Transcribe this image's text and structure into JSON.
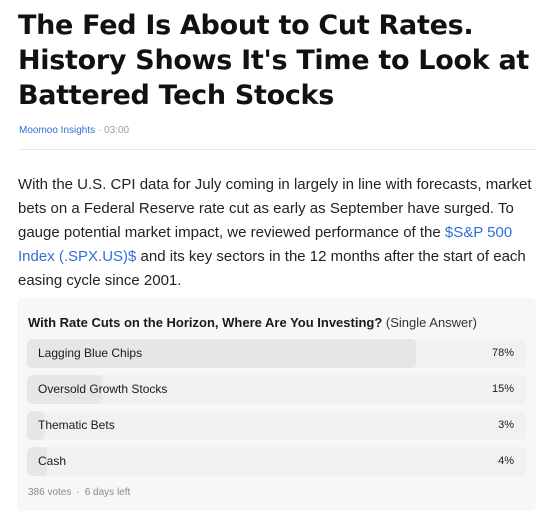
{
  "article": {
    "title": "The Fed Is About to Cut Rates. History Shows It's Time to Look at Battered Tech Stocks",
    "source": "Moomoo Insights",
    "separator": "·",
    "time": "03:00",
    "body_before_link": "With the U.S. CPI data for July coming in largely in line with forecasts, market bets on a Federal Reserve rate cut as early as September have surged. To gauge potential market impact, we reviewed performance of the ",
    "link_text": "$S&P 500 Index (.SPX.US)$",
    "body_after_link": " and its key sectors in the 12 months after the start of each easing cycle since 2001.",
    "colors": {
      "link": "#2f6fd6",
      "title": "#111111"
    }
  },
  "poll": {
    "question": "With Rate Cuts on the Horizon, Where Are You Investing?",
    "type": "(Single Answer)",
    "options": [
      {
        "label": "Lagging Blue Chips",
        "percent": "78%",
        "share": 0.78
      },
      {
        "label": "Oversold Growth Stocks",
        "percent": "15%",
        "share": 0.15
      },
      {
        "label": "Thematic Bets",
        "percent": "3%",
        "share": 0.03
      },
      {
        "label": "Cash",
        "percent": "4%",
        "share": 0.04
      }
    ],
    "votes": "386 votes",
    "separator": "·",
    "time_left": "6 days left",
    "colors": {
      "background": "#f7f7f7",
      "option_bg": "#f1f1f1",
      "fill": "#e6e6e6"
    }
  }
}
